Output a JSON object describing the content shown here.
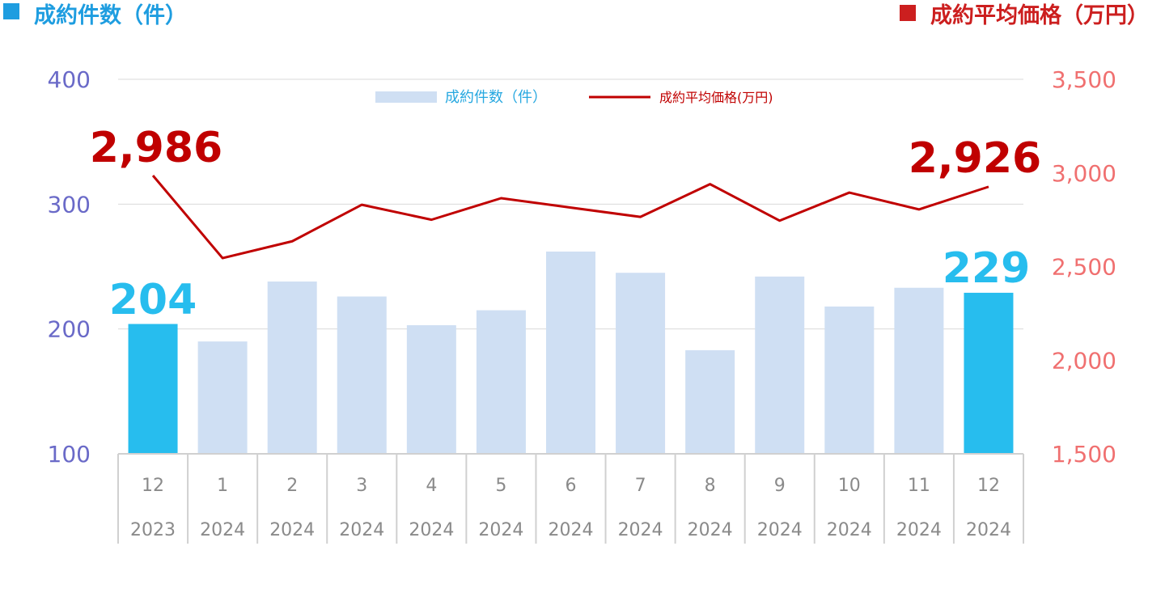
{
  "colors": {
    "count_title": "#1e9de0",
    "price_title": "#cc1f1f",
    "left_axis": "#6a6ac8",
    "right_axis": "#f07070",
    "bar": "#cfdff3",
    "bar_highlight": "#27bdee",
    "line": "#c00000",
    "callout_price": "#c00000",
    "callout_count": "#27bdee",
    "legend_count_text": "#27a8e0",
    "legend_price_text": "#c00000"
  },
  "titles": {
    "count_title": "成約件数（件）",
    "price_title": "成約平均価格（万円）"
  },
  "callouts": {
    "first_price": "2,986",
    "last_price": "2,926",
    "first_count": "204",
    "last_count": "229"
  },
  "chart_data": {
    "type": "bar",
    "categories": [
      "12",
      "1",
      "2",
      "3",
      "4",
      "5",
      "6",
      "7",
      "8",
      "9",
      "10",
      "11",
      "12"
    ],
    "years": [
      "2023",
      "2024",
      "2024",
      "2024",
      "2024",
      "2024",
      "2024",
      "2024",
      "2024",
      "2024",
      "2024",
      "2024",
      "2024"
    ],
    "series": [
      {
        "name": "成約件数（件）",
        "type": "bar",
        "axis": "left",
        "values": [
          204,
          190,
          238,
          226,
          203,
          215,
          262,
          245,
          183,
          242,
          218,
          233,
          229
        ],
        "highlight": [
          0,
          12
        ]
      },
      {
        "name": "成約平均価格(万円)",
        "type": "line",
        "axis": "right",
        "values": [
          2986,
          2545,
          2635,
          2830,
          2750,
          2865,
          2815,
          2765,
          2940,
          2745,
          2895,
          2805,
          2926
        ]
      }
    ],
    "left_axis": {
      "ylim": [
        100,
        400
      ],
      "ticks": [
        "100",
        "200",
        "300",
        "400"
      ]
    },
    "right_axis": {
      "ylim": [
        1500,
        3500
      ],
      "ticks": [
        "1,500",
        "2,000",
        "2,500",
        "3,000",
        "3,500"
      ]
    },
    "grid": true,
    "legend": "top-center"
  }
}
